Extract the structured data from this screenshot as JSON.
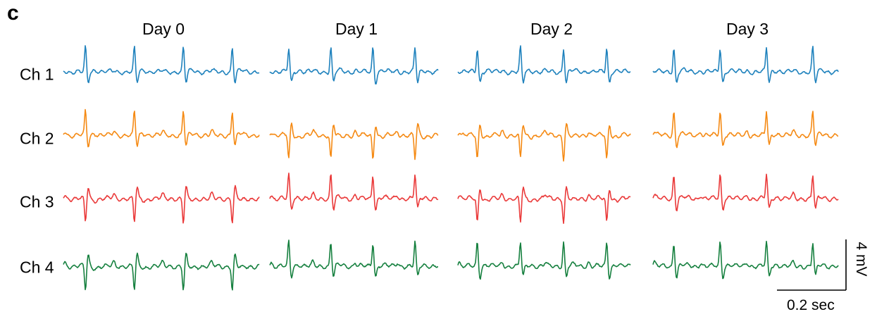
{
  "panel_letter": "c",
  "chart_data": {
    "type": "line",
    "title": "",
    "columns": [
      "Day 0",
      "Day 1",
      "Day 2",
      "Day 3"
    ],
    "rows": [
      {
        "name": "Ch 1",
        "color": "#1f82bd"
      },
      {
        "name": "Ch 2",
        "color": "#f58a14"
      },
      {
        "name": "Ch 3",
        "color": "#ea3a3a"
      },
      {
        "name": "Ch 4",
        "color": "#16803f"
      }
    ],
    "scale_bar": {
      "time": "0.2 sec",
      "amplitude": "4 mV"
    },
    "beats_per_trace": [
      [
        4,
        4,
        4,
        4
      ],
      [
        4,
        4,
        4,
        4
      ],
      [
        4,
        4,
        4,
        4
      ],
      [
        4,
        4,
        4,
        4
      ]
    ],
    "peak_polarity": [
      [
        "up",
        "up",
        "up",
        "up"
      ],
      [
        "up",
        "down",
        "down",
        "up"
      ],
      [
        "down",
        "up",
        "down",
        "up"
      ],
      [
        "down",
        "up",
        "up",
        "up"
      ]
    ],
    "grid": false,
    "legend": "none"
  }
}
